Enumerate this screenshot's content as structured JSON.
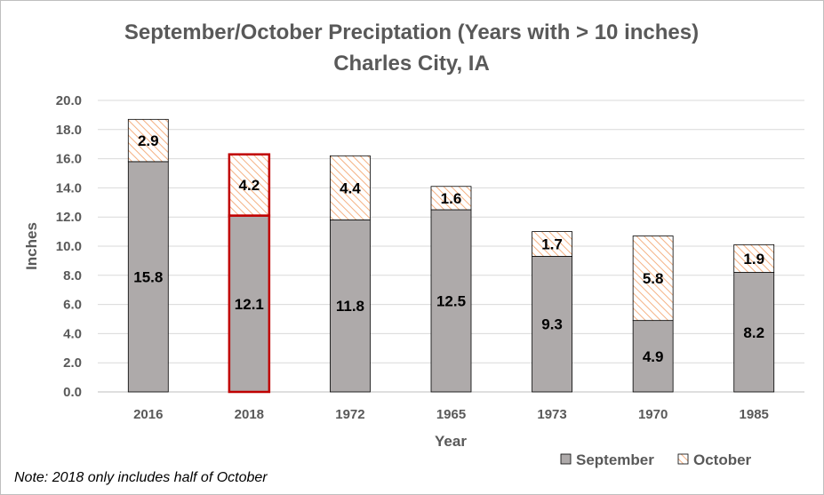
{
  "chart_data": {
    "type": "bar",
    "stacked": true,
    "title": "September/October Preciptation (Years with > 10 inches)",
    "subtitle": "Charles City, IA",
    "xlabel": "Year",
    "ylabel": "Inches",
    "ylim": [
      0,
      20
    ],
    "yticks": [
      "0.0",
      "2.0",
      "4.0",
      "6.0",
      "8.0",
      "10.0",
      "12.0",
      "14.0",
      "16.0",
      "18.0",
      "20.0"
    ],
    "categories": [
      "2016",
      "2018",
      "1972",
      "1965",
      "1973",
      "1970",
      "1985"
    ],
    "series": [
      {
        "name": "September",
        "values": [
          15.8,
          12.1,
          11.8,
          12.5,
          9.3,
          4.9,
          8.2
        ],
        "labels": [
          "15.8",
          "12.1",
          "11.8",
          "12.5",
          "9.3",
          "4.9",
          "8.2"
        ],
        "color": "#aeaaaa"
      },
      {
        "name": "October",
        "values": [
          2.9,
          4.2,
          4.4,
          1.6,
          1.7,
          5.8,
          1.9
        ],
        "labels": [
          "2.9",
          "4.2",
          "4.4",
          "1.6",
          "1.7",
          "5.8",
          "1.9"
        ],
        "color": "#f4b183"
      }
    ],
    "highlight_category": "2018",
    "highlight_color": "#c00000",
    "grid": true,
    "legend_position": "bottom-right"
  },
  "note": "Note: 2018 only includes half of October"
}
